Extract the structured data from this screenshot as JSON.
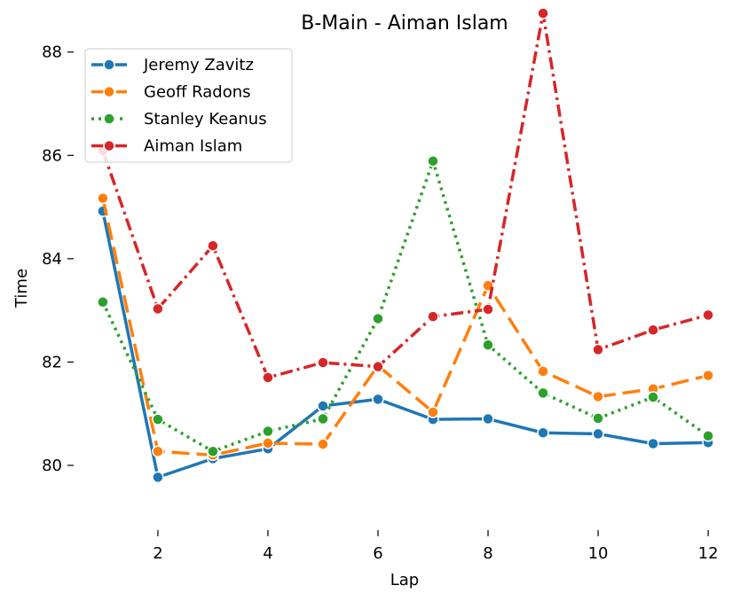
{
  "chart_data": {
    "type": "line",
    "title": "B-Main - Aiman Islam",
    "xlabel": "Lap",
    "ylabel": "Time",
    "x": [
      1,
      2,
      3,
      4,
      5,
      6,
      7,
      8,
      9,
      10,
      11,
      12
    ],
    "xticks": [
      2,
      4,
      6,
      8,
      10,
      12
    ],
    "yticks": [
      80,
      82,
      84,
      86,
      88
    ],
    "xlim": [
      0.55,
      12.45
    ],
    "ylim": [
      78.85,
      88.75
    ],
    "grid": false,
    "legend_position": "upper-left",
    "series": [
      {
        "name": "Jeremy Zavitz",
        "color": "#1f77b4",
        "dash": "solid",
        "values": [
          84.92,
          79.77,
          80.13,
          80.32,
          81.15,
          81.28,
          80.89,
          80.9,
          80.63,
          80.61,
          80.42,
          80.44
        ]
      },
      {
        "name": "Geoff Radons",
        "color": "#ff7f0e",
        "dash": "dashed",
        "values": [
          85.17,
          80.27,
          80.2,
          80.43,
          80.41,
          81.93,
          81.03,
          83.48,
          81.82,
          81.33,
          81.48,
          81.74
        ]
      },
      {
        "name": "Stanley Keanus",
        "color": "#2ca02c",
        "dash": "dotted",
        "values": [
          83.16,
          80.89,
          80.27,
          80.66,
          80.9,
          82.84,
          85.89,
          82.33,
          81.4,
          80.91,
          81.32,
          80.57
        ]
      },
      {
        "name": "Aiman Islam",
        "color": "#d62728",
        "dash": "dashdot",
        "values": [
          86.09,
          83.03,
          84.25,
          81.7,
          81.99,
          81.91,
          82.88,
          83.02,
          88.75,
          82.24,
          82.62,
          82.91
        ]
      }
    ]
  }
}
